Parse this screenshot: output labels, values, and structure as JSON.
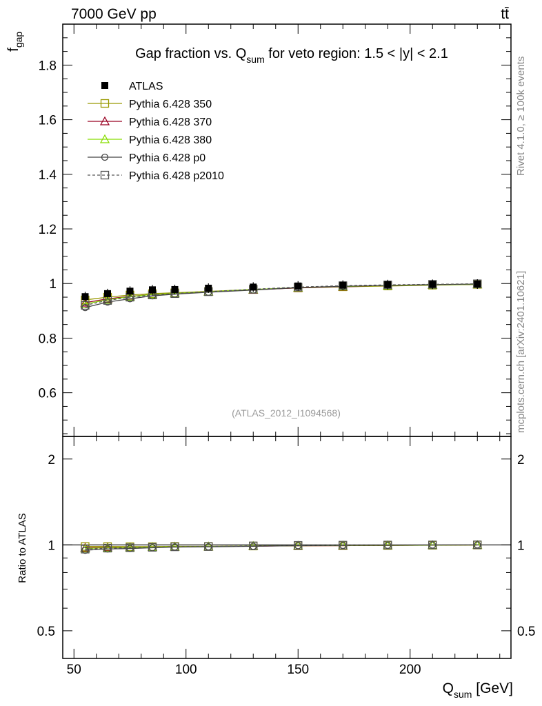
{
  "header": {
    "energy_label": "7000 GeV pp",
    "process_label": "tt̄"
  },
  "side": {
    "rivet_label": "Rivet 4.1.0, ≥ 100k events",
    "mcplots_label": "mcplots.cern.ch [arXiv:2401.10621]"
  },
  "chart_data": {
    "type": "line",
    "title": "Gap fraction vs. Q_sum for veto region: 1.5 < |y| < 2.1",
    "title_parts": {
      "pre": "Gap fraction vs. Q",
      "sub": "sum",
      "post": " for veto region: 1.5 < |y| < 2.1"
    },
    "ylabel_main": {
      "base": "f",
      "sub": "gap"
    },
    "ylabel_ratio": "Ratio to ATLAS",
    "xlabel": {
      "base": "Q",
      "sub": "sum",
      "unit": " [GeV]"
    },
    "analysis_tag": "(ATLAS_2012_I1094568)",
    "xlim": [
      45,
      245
    ],
    "ylim_main": [
      0.44,
      1.95
    ],
    "ylim_ratio": [
      0.4,
      2.4
    ],
    "x_ticks": [
      50,
      100,
      150,
      200
    ],
    "y_ticks_main": [
      0.6,
      0.8,
      1,
      1.2,
      1.4,
      1.6,
      1.8
    ],
    "y_ticks_ratio": [
      0.5,
      1,
      2
    ],
    "x": [
      55,
      65,
      75,
      85,
      95,
      110,
      130,
      150,
      170,
      190,
      210,
      230
    ],
    "data": {
      "name": "ATLAS",
      "values": [
        0.952,
        0.963,
        0.972,
        0.977,
        0.978,
        0.983,
        0.987,
        0.991,
        0.994,
        0.996,
        0.997,
        0.998
      ]
    },
    "series": [
      {
        "name": "Pythia 6.428 350",
        "color": "#999900",
        "marker": "square",
        "dash": "",
        "values": [
          0.94,
          0.95,
          0.958,
          0.963,
          0.966,
          0.971,
          0.978,
          0.984,
          0.988,
          0.991,
          0.994,
          0.997
        ]
      },
      {
        "name": "Pythia 6.428 370",
        "color": "#990022",
        "marker": "triangle",
        "dash": "",
        "values": [
          0.93,
          0.944,
          0.953,
          0.96,
          0.964,
          0.97,
          0.977,
          0.984,
          0.988,
          0.992,
          0.995,
          0.997
        ]
      },
      {
        "name": "Pythia 6.428 380",
        "color": "#88dd00",
        "marker": "triangle",
        "dash": "",
        "values": [
          0.925,
          0.941,
          0.952,
          0.96,
          0.964,
          0.97,
          0.978,
          0.985,
          0.989,
          0.992,
          0.995,
          0.997
        ]
      },
      {
        "name": "Pythia 6.428 p0",
        "color": "#444444",
        "marker": "circle",
        "dash": "",
        "values": [
          0.912,
          0.932,
          0.944,
          0.955,
          0.961,
          0.968,
          0.976,
          0.985,
          0.99,
          0.993,
          0.996,
          0.998
        ]
      },
      {
        "name": "Pythia 6.428 p2010",
        "color": "#555555",
        "marker": "square",
        "dash": "4,3",
        "values": [
          0.92,
          0.938,
          0.95,
          0.958,
          0.963,
          0.97,
          0.979,
          0.987,
          0.992,
          0.995,
          0.997,
          0.999
        ]
      }
    ]
  }
}
